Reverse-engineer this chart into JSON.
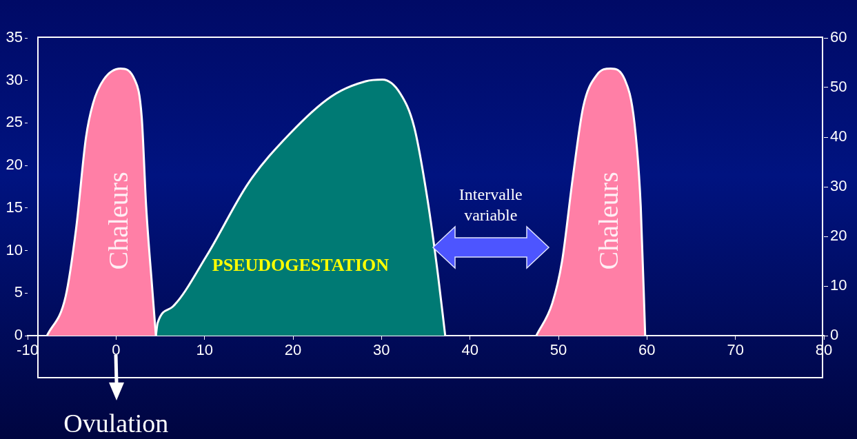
{
  "chart_data": {
    "type": "area",
    "series": [
      {
        "name": "Chaleurs",
        "color": "#ff7fa6",
        "x": [
          -7.8,
          -5.7,
          -4.5,
          -3.4,
          -2.6,
          -1.4,
          0.5,
          2.1,
          2.9,
          3.4,
          4.1,
          4.5
        ],
        "values": [
          0,
          4.6,
          12.7,
          23.3,
          27.3,
          30.1,
          31.4,
          30.1,
          25.7,
          15.2,
          5.4,
          0
        ]
      },
      {
        "name": "PSEUDOGESTATION",
        "color": "#007a74",
        "x": [
          4.5,
          4.7,
          6.4,
          10.3,
          15,
          19.6,
          24.3,
          28.2,
          30.1,
          32.1,
          33.7,
          35.2,
          36.4,
          37.2
        ],
        "values": [
          0,
          1.5,
          3.4,
          9.5,
          18,
          23.7,
          28.1,
          29.9,
          30.1,
          28.5,
          24.5,
          16,
          7,
          0
        ]
      },
      {
        "name": "Chaleurs",
        "color": "#ff7fa6",
        "x": [
          47.5,
          49.3,
          50.4,
          51.6,
          52.8,
          54.3,
          55.9,
          57.5,
          58.6,
          59.3,
          59.8
        ],
        "values": [
          0,
          3.8,
          8.7,
          18.4,
          26.9,
          30.6,
          31.4,
          30.1,
          24.9,
          15.2,
          0
        ]
      }
    ],
    "xlim": [
      -10,
      80
    ],
    "xticks": [
      -10,
      0,
      10,
      20,
      30,
      40,
      50,
      60,
      70,
      80
    ],
    "ylim": [
      0,
      35
    ],
    "yticks": [
      0,
      5,
      10,
      15,
      20,
      25,
      30,
      35
    ],
    "y2lim": [
      0,
      60
    ],
    "y2ticks": [
      0,
      10,
      20,
      30,
      40,
      50,
      60
    ],
    "annotations": [
      "Intervalle variable",
      {
        "text": "Ovulation",
        "x": 0,
        "y": 0
      }
    ],
    "legend": false,
    "grid": false
  }
}
